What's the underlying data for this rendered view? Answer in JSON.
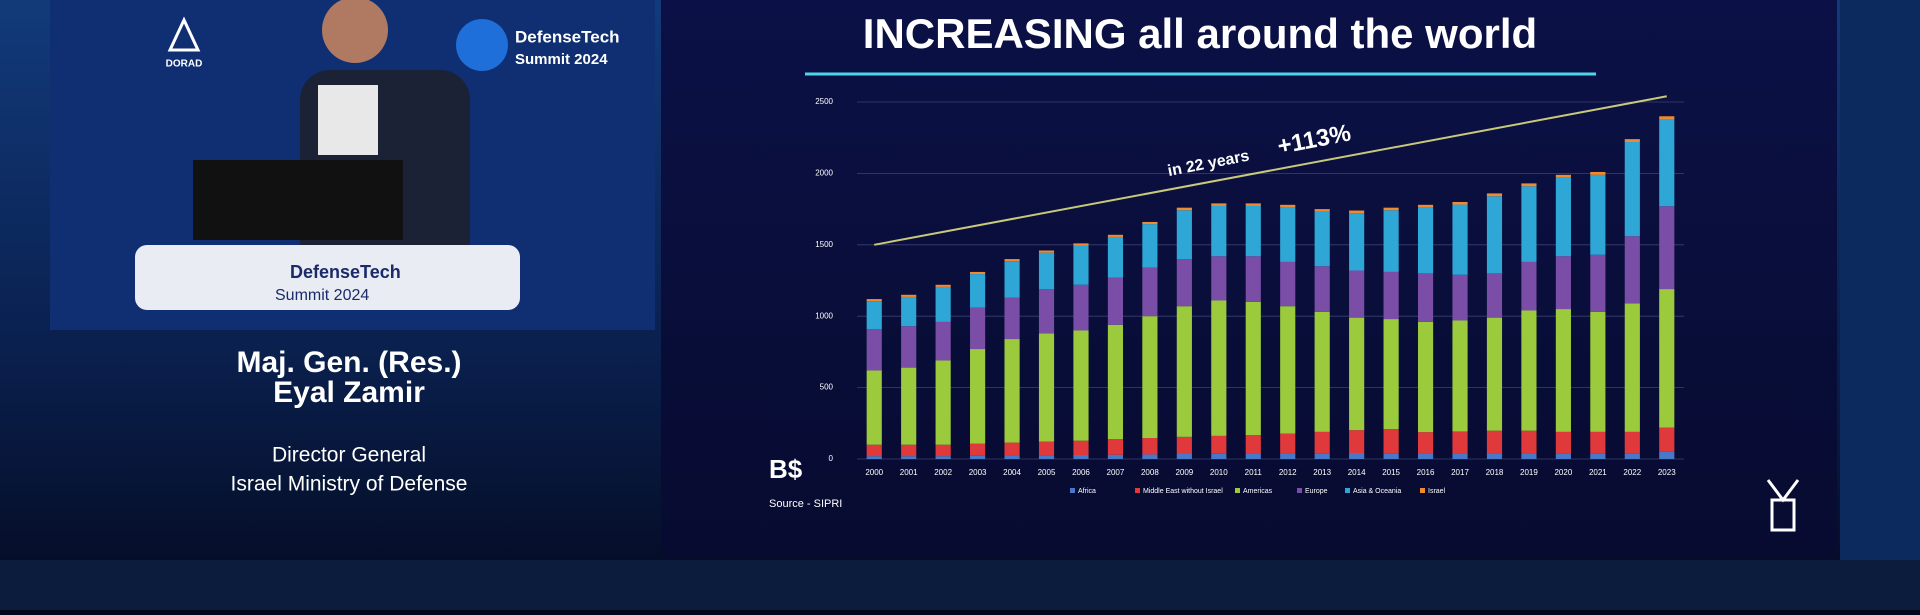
{
  "stage": {
    "logo_top": "DefenseTech",
    "logo_bottom": "Summit 2024",
    "sponsor": "DORAD",
    "podium_top": "DefenseTech",
    "podium_bottom": "Summit 2024",
    "speaker_rank": "Maj. Gen. (Res.)",
    "speaker_name": "Eyal Zamir",
    "speaker_role": "Director General",
    "speaker_org": "Israel Ministry of Defense"
  },
  "chart_data": {
    "type": "bar",
    "stacked": true,
    "title": "INCREASING all around the world",
    "unit_label": "B$",
    "source": "Source - SIPRI",
    "annotation_years": "in 22 years",
    "annotation_growth": "+113%",
    "categories": [
      "2000",
      "2001",
      "2002",
      "2003",
      "2004",
      "2005",
      "2006",
      "2007",
      "2008",
      "2009",
      "2010",
      "2011",
      "2012",
      "2013",
      "2014",
      "2015",
      "2016",
      "2017",
      "2018",
      "2019",
      "2020",
      "2021",
      "2022",
      "2023"
    ],
    "series": [
      {
        "name": "Africa",
        "color": "#4a78c8",
        "values": [
          20,
          20,
          20,
          22,
          25,
          27,
          28,
          30,
          32,
          35,
          37,
          38,
          38,
          40,
          42,
          40,
          38,
          38,
          38,
          38,
          40,
          40,
          40,
          50
        ]
      },
      {
        "name": "Middle East without Israel",
        "color": "#e0393b",
        "values": [
          80,
          80,
          80,
          85,
          90,
          95,
          100,
          110,
          115,
          120,
          125,
          130,
          140,
          150,
          160,
          170,
          150,
          155,
          160,
          160,
          150,
          150,
          150,
          170
        ]
      },
      {
        "name": "Americas",
        "color": "#9bcb3c",
        "values": [
          520,
          540,
          590,
          663,
          725,
          758,
          772,
          800,
          853,
          915,
          948,
          932,
          892,
          840,
          788,
          770,
          772,
          777,
          792,
          842,
          860,
          840,
          900,
          970
        ]
      },
      {
        "name": "Europe",
        "color": "#7a4ea6",
        "values": [
          290,
          290,
          270,
          290,
          290,
          310,
          320,
          330,
          340,
          330,
          310,
          320,
          310,
          320,
          330,
          330,
          340,
          320,
          310,
          340,
          370,
          400,
          470,
          580
        ]
      },
      {
        "name": "Asia & Oceania",
        "color": "#2ea6d6",
        "values": [
          195,
          205,
          245,
          235,
          255,
          255,
          275,
          285,
          305,
          342,
          352,
          352,
          382,
          382,
          402,
          432,
          462,
          492,
          540,
          530,
          550,
          560,
          660,
          608
        ]
      },
      {
        "name": "Israel",
        "color": "#f08a30",
        "values": [
          15,
          15,
          15,
          15,
          15,
          15,
          15,
          15,
          15,
          18,
          18,
          18,
          18,
          18,
          18,
          18,
          18,
          18,
          20,
          20,
          20,
          20,
          20,
          22
        ]
      }
    ],
    "trend_line": {
      "color": "#c9c97a",
      "x": [
        2000,
        2023
      ],
      "values": [
        1500,
        2540
      ]
    },
    "ylim": [
      0,
      2500
    ],
    "yticks": [
      0,
      500,
      1000,
      1500,
      2000,
      2500
    ],
    "grid": true
  }
}
